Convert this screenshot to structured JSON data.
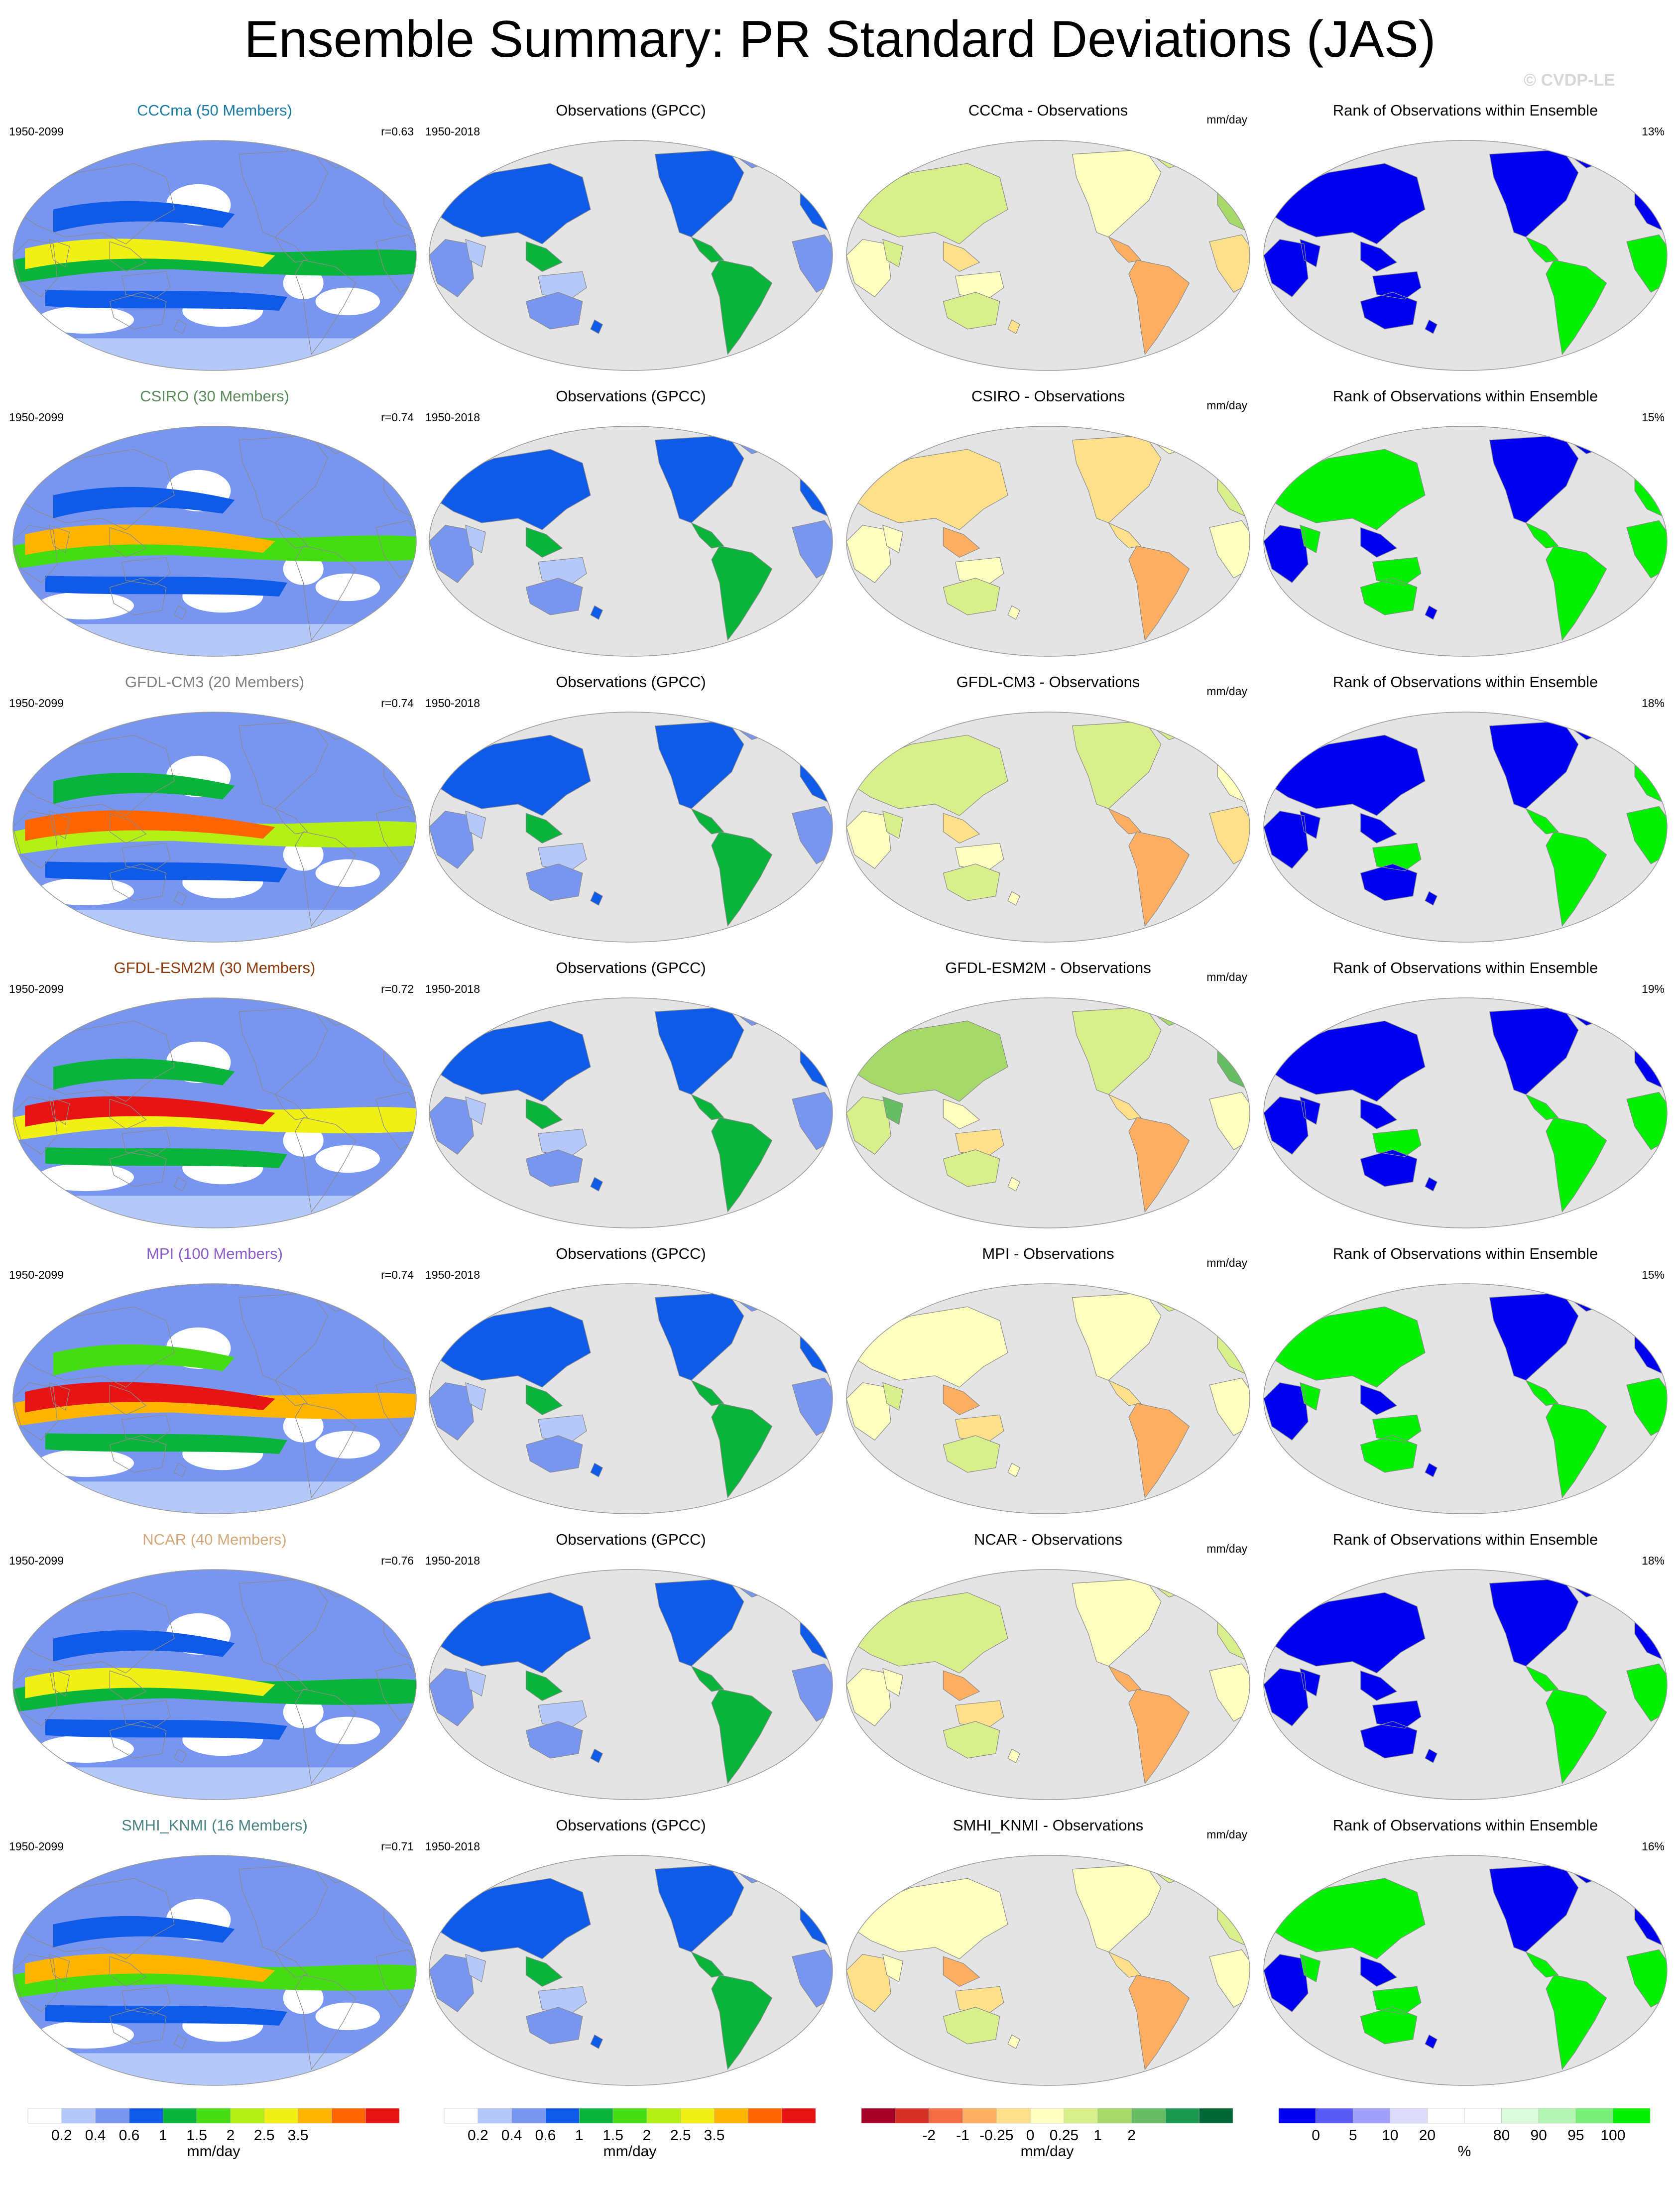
{
  "title": "Ensemble Summary: PR Standard Deviations (JAS)",
  "watermark": "© CVDP-LE",
  "colors": {
    "ocean": "#e4e4e4",
    "coast": "#8a8a8a",
    "ens_levels": [
      "#ffffff",
      "#b4c8fa",
      "#7896f0",
      "#0f5ae6",
      "#0ab43c",
      "#46dc14",
      "#b4f014",
      "#f0f014",
      "#ffb400",
      "#ff6400",
      "#e61414"
    ],
    "diff_levels": [
      "#a50026",
      "#d73027",
      "#f46d43",
      "#fdae61",
      "#fee08b",
      "#ffffbf",
      "#d9ef8b",
      "#a6d96a",
      "#66bd63",
      "#1a9850",
      "#006837"
    ],
    "rank_levels": [
      "#0000f0",
      "#5a5af5",
      "#a0a0fa",
      "#dcdcfa",
      "#ffffff",
      "#ffffff",
      "#dcfadc",
      "#b4f5b4",
      "#78f078",
      "#00f000"
    ]
  },
  "rows": [
    {
      "model": "CCCma (50 Members)",
      "model_color": "#1a7aa6",
      "ens_period": "1950-2099",
      "r": "r=0.63",
      "obs_title": "Observations (GPCC)",
      "obs_period": "1950-2018",
      "diff_title": "CCCma - Observations",
      "diff_units": "mm/day",
      "rank_title": "Rank of Observations within Ensemble",
      "rank_pct": "13%"
    },
    {
      "model": "CSIRO (30 Members)",
      "model_color": "#5c8a5c",
      "ens_period": "1950-2099",
      "r": "r=0.74",
      "obs_title": "Observations (GPCC)",
      "obs_period": "1950-2018",
      "diff_title": "CSIRO - Observations",
      "diff_units": "mm/day",
      "rank_title": "Rank of Observations within Ensemble",
      "rank_pct": "15%"
    },
    {
      "model": "GFDL-CM3 (20 Members)",
      "model_color": "#808080",
      "ens_period": "1950-2099",
      "r": "r=0.74",
      "obs_title": "Observations (GPCC)",
      "obs_period": "1950-2018",
      "diff_title": "GFDL-CM3 - Observations",
      "diff_units": "mm/day",
      "rank_title": "Rank of Observations within Ensemble",
      "rank_pct": "18%"
    },
    {
      "model": "GFDL-ESM2M (30 Members)",
      "model_color": "#8b3a0e",
      "ens_period": "1950-2099",
      "r": "r=0.72",
      "obs_title": "Observations (GPCC)",
      "obs_period": "1950-2018",
      "diff_title": "GFDL-ESM2M - Observations",
      "diff_units": "mm/day",
      "rank_title": "Rank of Observations within Ensemble",
      "rank_pct": "19%"
    },
    {
      "model": "MPI (100 Members)",
      "model_color": "#8a5cc8",
      "ens_period": "1950-2099",
      "r": "r=0.74",
      "obs_title": "Observations (GPCC)",
      "obs_period": "1950-2018",
      "diff_title": "MPI - Observations",
      "diff_units": "mm/day",
      "rank_title": "Rank of Observations within Ensemble",
      "rank_pct": "15%"
    },
    {
      "model": "NCAR (40 Members)",
      "model_color": "#d2a87a",
      "ens_period": "1950-2099",
      "r": "r=0.76",
      "obs_title": "Observations (GPCC)",
      "obs_period": "1950-2018",
      "diff_title": "NCAR - Observations",
      "diff_units": "mm/day",
      "rank_title": "Rank of Observations within Ensemble",
      "rank_pct": "18%"
    },
    {
      "model": "SMHI_KNMI (16 Members)",
      "model_color": "#4a8080",
      "ens_period": "1950-2099",
      "r": "r=0.71",
      "obs_title": "Observations (GPCC)",
      "obs_period": "1950-2018",
      "diff_title": "SMHI_KNMI - Observations",
      "diff_units": "mm/day",
      "rank_title": "Rank of Observations within Ensemble",
      "rank_pct": "16%"
    }
  ],
  "colorbars": [
    {
      "label": "mm/day",
      "ticks": [
        "0.2",
        "0.4",
        "0.6",
        "1",
        "1.5",
        "2",
        "2.5",
        "3.5"
      ]
    },
    {
      "label": "mm/day",
      "ticks": [
        "0.2",
        "0.4",
        "0.6",
        "1",
        "1.5",
        "2",
        "2.5",
        "3.5"
      ]
    },
    {
      "label": "mm/day",
      "ticks": [
        "-2",
        "-1",
        "-0.25",
        "0",
        "0.25",
        "1",
        "2"
      ]
    },
    {
      "label": "%",
      "ticks": [
        "0",
        "5",
        "10",
        "20",
        "80",
        "90",
        "95",
        "100"
      ]
    }
  ],
  "chart_data": {
    "type": "heatmap",
    "title": "Ensemble Summary: PR Standard Deviations (JAS)",
    "grid": {
      "rows": 7,
      "columns": [
        "ensemble mean",
        "observations",
        "difference",
        "rank"
      ]
    },
    "models": [
      "CCCma",
      "CSIRO",
      "GFDL-CM3",
      "GFDL-ESM2M",
      "MPI",
      "NCAR",
      "SMHI_KNMI"
    ],
    "members": [
      50,
      30,
      20,
      30,
      100,
      40,
      16
    ],
    "pattern_correlation": [
      0.63,
      0.74,
      0.74,
      0.72,
      0.74,
      0.76,
      0.71
    ],
    "rank_percent": [
      13,
      15,
      18,
      19,
      15,
      18,
      16
    ],
    "ens_levels_mm_day": [
      0.2,
      0.4,
      0.6,
      1,
      1.5,
      2,
      2.5,
      3.5
    ],
    "diff_levels_mm_day": [
      -2,
      -1,
      -0.25,
      0,
      0.25,
      1,
      2
    ],
    "rank_levels_pct": [
      0,
      5,
      10,
      20,
      80,
      90,
      95,
      100
    ]
  }
}
